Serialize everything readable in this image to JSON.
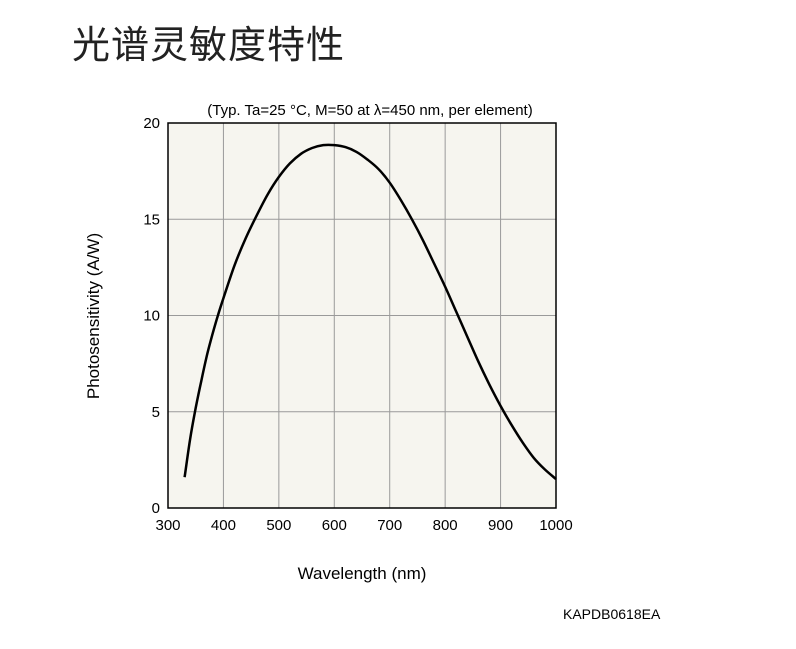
{
  "page": {
    "title": "光谱灵敏度特性",
    "figure_code": "KAPDB0618EA"
  },
  "chart_data": {
    "type": "line",
    "title": "",
    "subtitle": "(Typ. Ta=25 °C, M=50 at λ=450 nm, per element)",
    "xlabel": "Wavelength (nm)",
    "ylabel": "Photosensitivity (A/W)",
    "xlim": [
      300,
      1000
    ],
    "ylim": [
      0,
      20
    ],
    "x_ticks": [
      300,
      400,
      500,
      600,
      700,
      800,
      900,
      1000
    ],
    "y_ticks": [
      0,
      5,
      10,
      15,
      20
    ],
    "grid": true,
    "plot_background": "#f6f5ef",
    "line_color": "#000000",
    "series": [
      {
        "name": "",
        "x": [
          330,
          340,
          350,
          360,
          370,
          380,
          390,
          400,
          420,
          440,
          460,
          480,
          500,
          520,
          540,
          560,
          580,
          600,
          620,
          640,
          660,
          680,
          700,
          720,
          740,
          760,
          780,
          800,
          820,
          840,
          860,
          880,
          900,
          920,
          940,
          960,
          980,
          1000
        ],
        "y": [
          1.6,
          3.6,
          5.2,
          6.6,
          7.9,
          9.0,
          10.0,
          10.9,
          12.6,
          14.0,
          15.2,
          16.3,
          17.2,
          17.9,
          18.4,
          18.7,
          18.85,
          18.85,
          18.75,
          18.5,
          18.1,
          17.6,
          16.9,
          16.0,
          15.0,
          13.9,
          12.7,
          11.5,
          10.2,
          8.9,
          7.6,
          6.4,
          5.3,
          4.3,
          3.4,
          2.6,
          2.0,
          1.5
        ]
      }
    ]
  }
}
